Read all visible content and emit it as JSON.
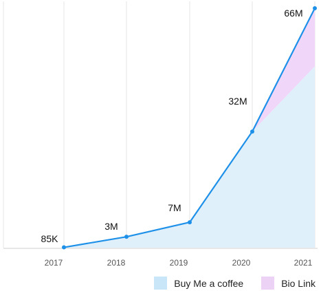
{
  "chart_data": {
    "type": "area",
    "categories": [
      "2017",
      "2018",
      "2019",
      "2020",
      "2021"
    ],
    "x": [
      "2017",
      "2018",
      "2019",
      "2020",
      "2021"
    ],
    "ylim": [
      0,
      66
    ],
    "grid": "vertical",
    "legend_position": "bottom-right",
    "series": [
      {
        "name": "Buy Me a coffee",
        "color": "#dff0fb",
        "swatch": "#c9e6f9",
        "values": [
          0.085,
          3,
          7,
          32,
          50
        ]
      },
      {
        "name": "Bio Link",
        "color": "#f0d6f8",
        "swatch": "#ecd3f6",
        "values": [
          0,
          0,
          0,
          0,
          16
        ]
      }
    ],
    "total_line": {
      "color": "#1e90e8",
      "values": [
        0.085,
        3,
        7,
        32,
        66
      ]
    },
    "data_labels": [
      "85K",
      "3M",
      "7M",
      "32M",
      "66M"
    ]
  }
}
